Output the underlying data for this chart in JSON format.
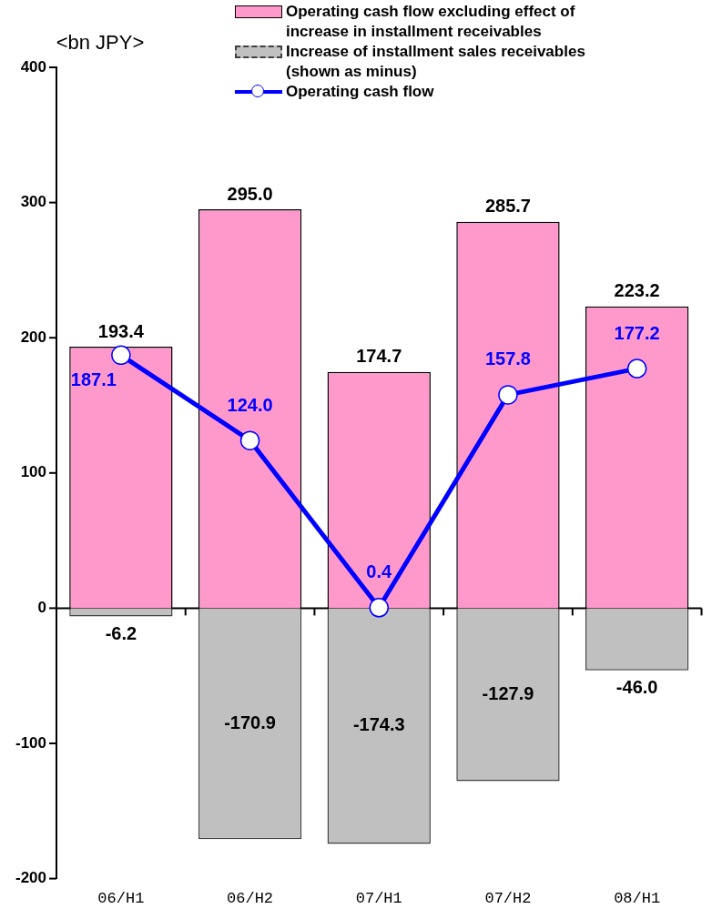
{
  "chart_data": {
    "type": "bar",
    "stacked": true,
    "ylabel": "<bn JPY>",
    "categories": [
      "06/H1",
      "06/H2",
      "07/H1",
      "07/H2",
      "08/H1"
    ],
    "series": [
      {
        "name": "Operating cash flow excluding effect of increase in installment receivables",
        "color": "#ff99cc",
        "values": [
          193.4,
          295.0,
          174.7,
          285.7,
          223.2
        ],
        "value_labels": [
          "193.4",
          "295.0",
          "174.7",
          "285.7",
          "223.2"
        ],
        "line_style": "solid"
      },
      {
        "name": "Increase of installment sales receivables (shown as minus)",
        "color": "#c0c0c0",
        "values": [
          -6.2,
          -170.9,
          -174.3,
          -127.9,
          -46.0
        ],
        "value_labels": [
          "-6.2",
          "-170.9",
          "-174.3",
          "-127.9",
          "-46.0"
        ],
        "line_style": "dashed"
      },
      {
        "name": "Operating cash flow",
        "type": "line",
        "color": "#0000ff",
        "values": [
          187.1,
          124.0,
          0.4,
          157.8,
          177.2
        ],
        "value_labels": [
          "187.1",
          "124.0",
          "0.4",
          "157.8",
          "177.2"
        ],
        "marker": "circle",
        "line_style": "solid"
      }
    ],
    "ylim": [
      -200,
      400
    ],
    "yticks": [
      -200,
      -100,
      0,
      100,
      200,
      300,
      400
    ],
    "legend": "top right"
  }
}
